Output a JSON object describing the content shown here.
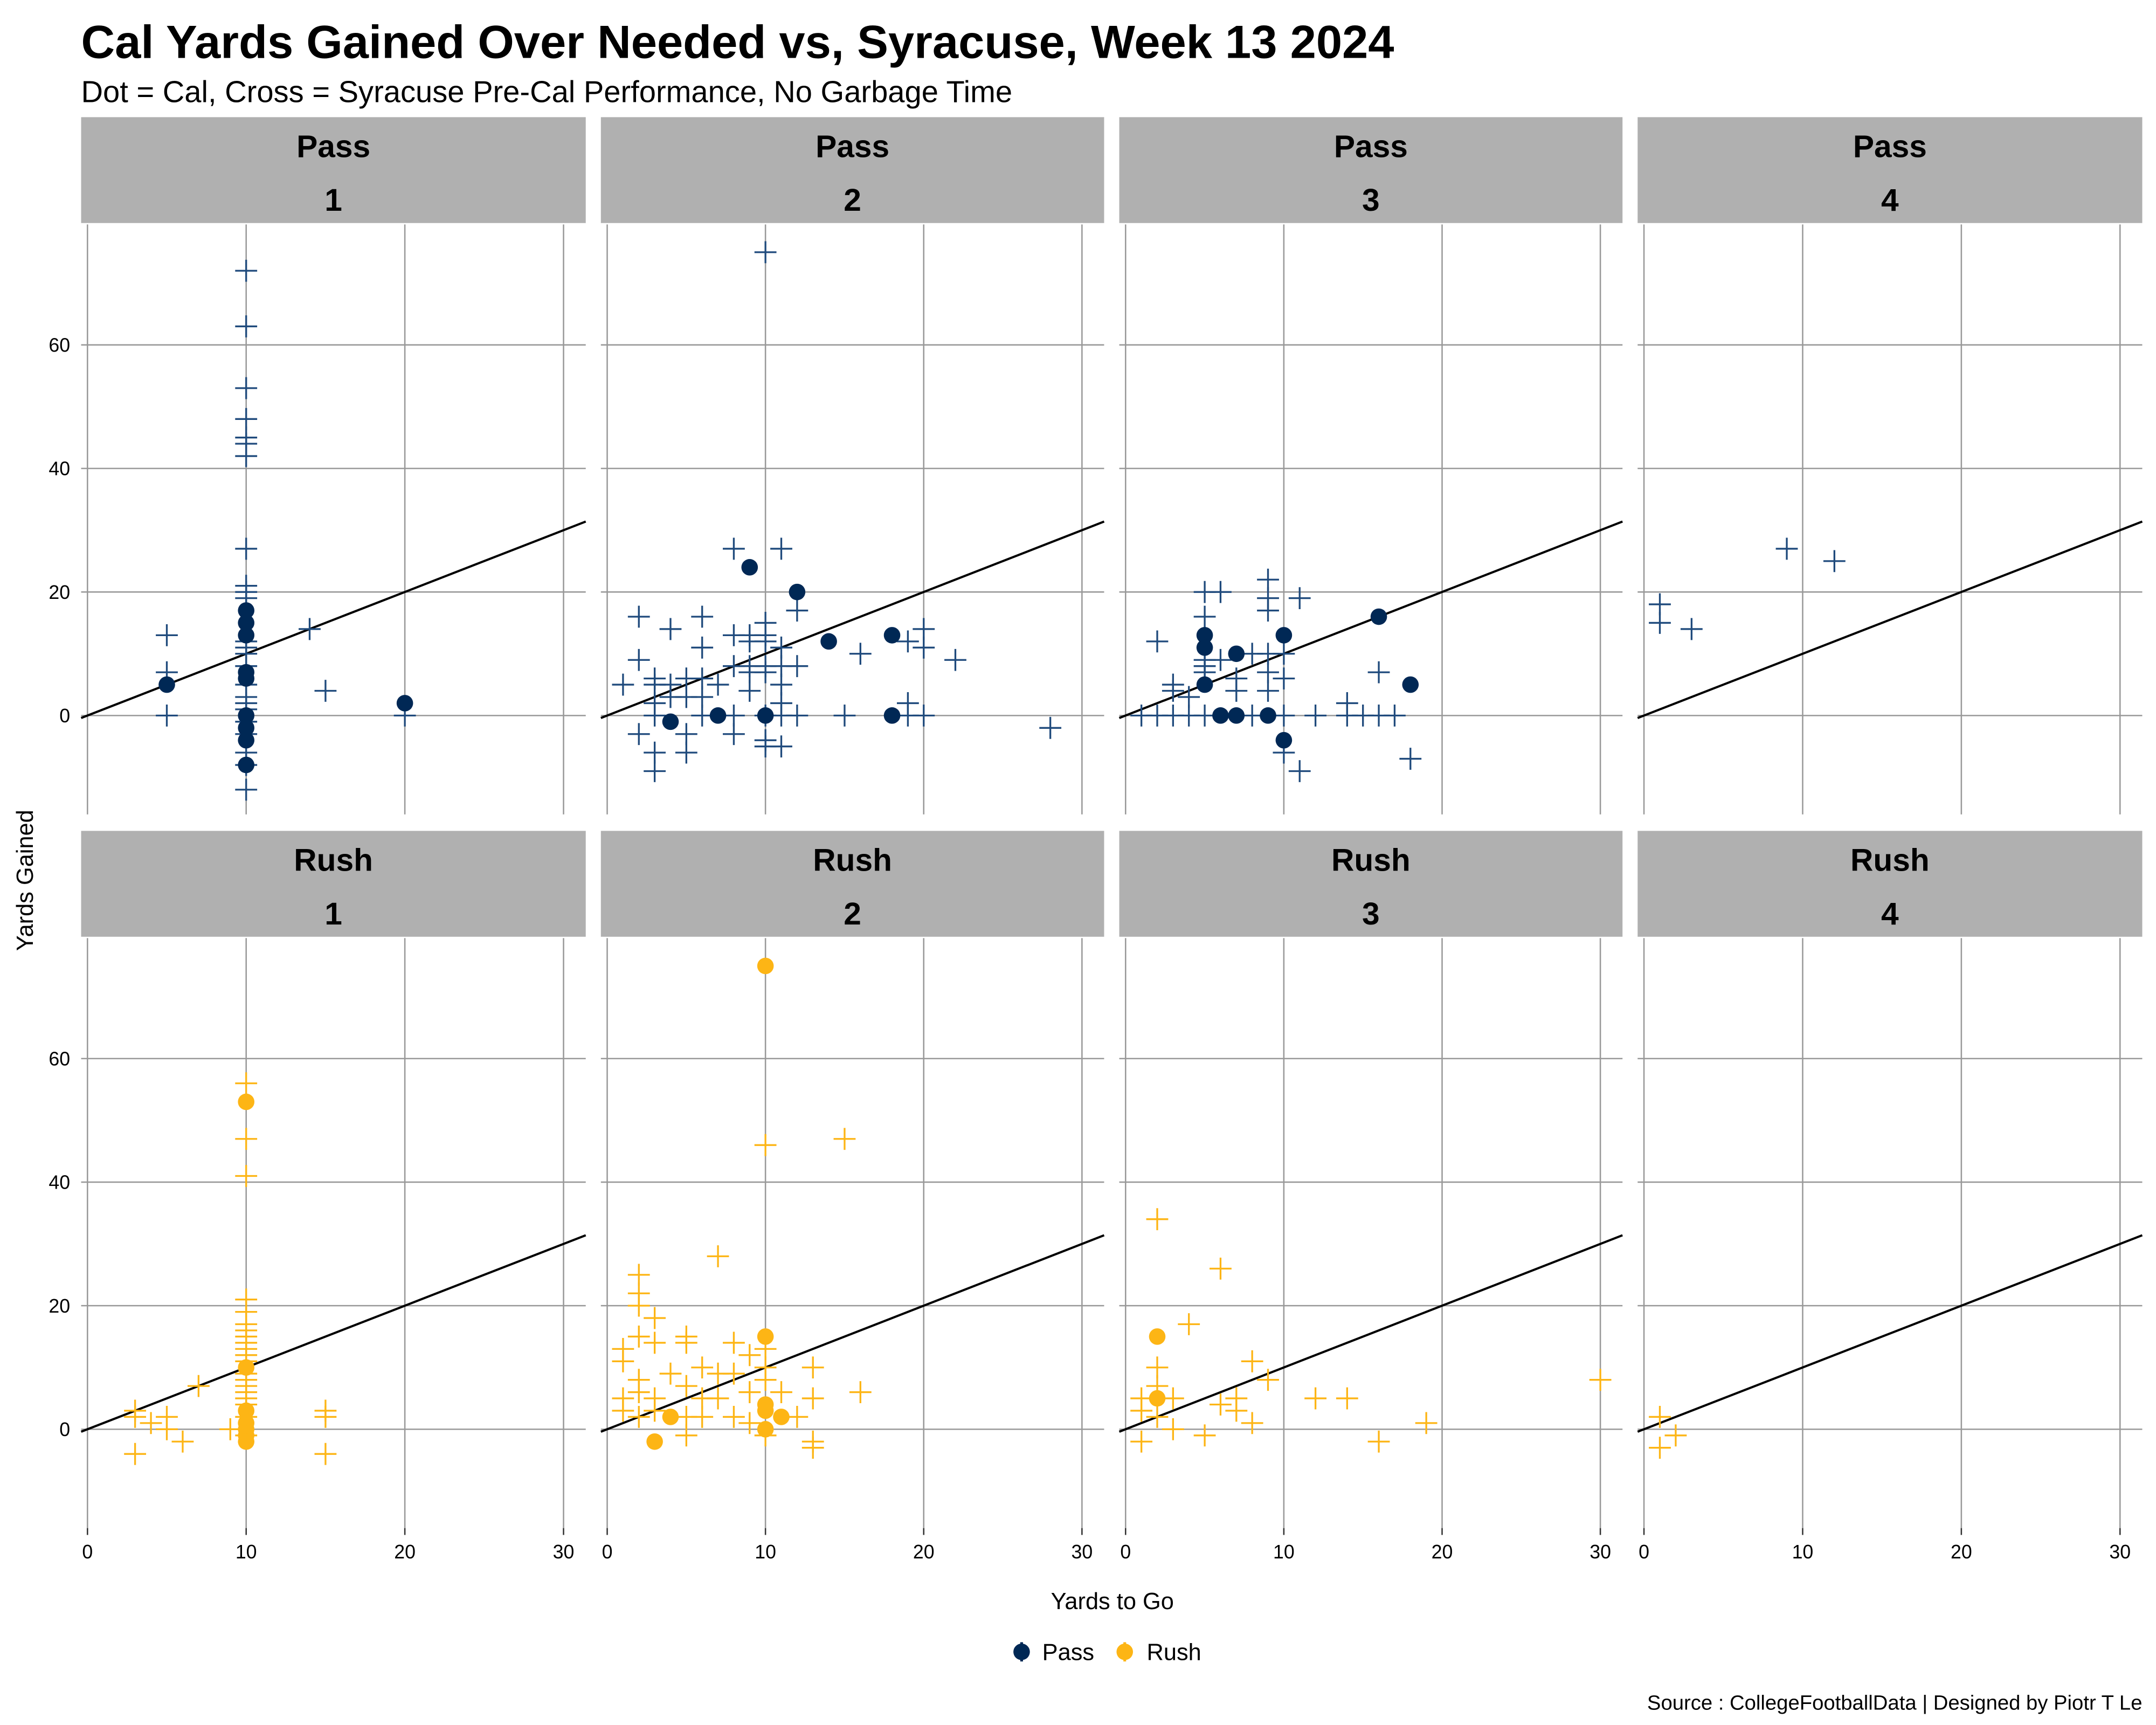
{
  "colors": {
    "pass": "#002855",
    "pass_cross": "#1f4a7c",
    "rush": "#FDB515",
    "strip": "#b0b0b0",
    "grid": "#999999",
    "line": "#000000"
  },
  "chart_data": {
    "type": "scatter",
    "title": "Cal Yards Gained Over Needed vs, Syracuse, Week 13 2024",
    "subtitle": "Dot = Cal, Cross = Syracuse Pre-Cal Performance, No Garbage Time",
    "xlabel": "Yards to Go",
    "ylabel": "Yards Gained",
    "caption": "Source : CollegeFootballData | Designed by Piotr T Le",
    "xlim": [
      -0.4,
      31.4
    ],
    "ylim": [
      -16,
      79.5
    ],
    "xticks": [
      0,
      10,
      20,
      30
    ],
    "yticks": [
      0,
      20,
      40,
      60
    ],
    "reference_line": "y = x",
    "grid": true,
    "legend": {
      "position": "bottom",
      "entries": [
        {
          "label": "Pass",
          "key": "pass"
        },
        {
          "label": "Rush",
          "key": "rush"
        }
      ]
    },
    "panels": [
      {
        "play_type": "Pass",
        "down": "1",
        "key": "pass",
        "cal": [
          [
            5,
            5
          ],
          [
            10,
            17
          ],
          [
            10,
            15
          ],
          [
            10,
            13
          ],
          [
            10,
            7
          ],
          [
            10,
            6
          ],
          [
            10,
            0
          ],
          [
            10,
            -2
          ],
          [
            10,
            -4
          ],
          [
            10,
            -8
          ],
          [
            20,
            2
          ]
        ],
        "syracuse": [
          [
            5,
            13
          ],
          [
            5,
            7
          ],
          [
            5,
            0
          ],
          [
            10,
            72
          ],
          [
            10,
            63
          ],
          [
            10,
            53
          ],
          [
            10,
            48
          ],
          [
            10,
            45
          ],
          [
            10,
            44
          ],
          [
            10,
            42
          ],
          [
            10,
            27
          ],
          [
            10,
            21
          ],
          [
            10,
            20
          ],
          [
            10,
            19
          ],
          [
            10,
            12
          ],
          [
            10,
            11
          ],
          [
            10,
            10
          ],
          [
            10,
            8
          ],
          [
            10,
            5
          ],
          [
            10,
            3
          ],
          [
            10,
            2
          ],
          [
            10,
            1
          ],
          [
            10,
            -1
          ],
          [
            10,
            -3
          ],
          [
            10,
            -6
          ],
          [
            10,
            -8
          ],
          [
            10,
            -12
          ],
          [
            14,
            14
          ],
          [
            15,
            4
          ],
          [
            20,
            0
          ]
        ]
      },
      {
        "play_type": "Pass",
        "down": "2",
        "key": "pass",
        "cal": [
          [
            4,
            -1
          ],
          [
            7,
            0
          ],
          [
            9,
            24
          ],
          [
            10,
            0
          ],
          [
            12,
            20
          ],
          [
            14,
            12
          ],
          [
            18,
            13
          ],
          [
            18,
            0
          ]
        ],
        "syracuse": [
          [
            10,
            75
          ],
          [
            8,
            27
          ],
          [
            11,
            27
          ],
          [
            2,
            16
          ],
          [
            4,
            14
          ],
          [
            6,
            16
          ],
          [
            2,
            9
          ],
          [
            6,
            11
          ],
          [
            8,
            13
          ],
          [
            9,
            13
          ],
          [
            10,
            13
          ],
          [
            10,
            15
          ],
          [
            12,
            17
          ],
          [
            9,
            12
          ],
          [
            10,
            12
          ],
          [
            11,
            11
          ],
          [
            12,
            8
          ],
          [
            8,
            8
          ],
          [
            9,
            8
          ],
          [
            10,
            8
          ],
          [
            11,
            8
          ],
          [
            16,
            10
          ],
          [
            19,
            12
          ],
          [
            20,
            14
          ],
          [
            20,
            11
          ],
          [
            22,
            9
          ],
          [
            1,
            5
          ],
          [
            3,
            5
          ],
          [
            3,
            6
          ],
          [
            4,
            5
          ],
          [
            5,
            6
          ],
          [
            5,
            3
          ],
          [
            6,
            6
          ],
          [
            7,
            5
          ],
          [
            9,
            4
          ],
          [
            11,
            5
          ],
          [
            3,
            2
          ],
          [
            4,
            3
          ],
          [
            6,
            3
          ],
          [
            9,
            7
          ],
          [
            10,
            7
          ],
          [
            11,
            2
          ],
          [
            3,
            0
          ],
          [
            6,
            0
          ],
          [
            8,
            0
          ],
          [
            10,
            0
          ],
          [
            11,
            0
          ],
          [
            12,
            0
          ],
          [
            15,
            0
          ],
          [
            19,
            0
          ],
          [
            20,
            0
          ],
          [
            19,
            2
          ],
          [
            2,
            -3
          ],
          [
            5,
            -3
          ],
          [
            8,
            -3
          ],
          [
            10,
            -4
          ],
          [
            10,
            -5
          ],
          [
            11,
            -5
          ],
          [
            3,
            -6
          ],
          [
            5,
            -6
          ],
          [
            3,
            -9
          ],
          [
            28,
            -2
          ]
        ]
      },
      {
        "play_type": "Pass",
        "down": "3",
        "key": "pass",
        "cal": [
          [
            5,
            13
          ],
          [
            5,
            11
          ],
          [
            5,
            5
          ],
          [
            6,
            0
          ],
          [
            7,
            10
          ],
          [
            7,
            0
          ],
          [
            9,
            0
          ],
          [
            10,
            13
          ],
          [
            10,
            -4
          ],
          [
            16,
            16
          ],
          [
            18,
            5
          ]
        ],
        "syracuse": [
          [
            2,
            12
          ],
          [
            3,
            5
          ],
          [
            3,
            4
          ],
          [
            4,
            3
          ],
          [
            5,
            20
          ],
          [
            5,
            16
          ],
          [
            5,
            9
          ],
          [
            5,
            8
          ],
          [
            5,
            7
          ],
          [
            6,
            20
          ],
          [
            6,
            9
          ],
          [
            7,
            6
          ],
          [
            7,
            4
          ],
          [
            8,
            10
          ],
          [
            9,
            22
          ],
          [
            9,
            19
          ],
          [
            9,
            17
          ],
          [
            9,
            10
          ],
          [
            9,
            7
          ],
          [
            9,
            4
          ],
          [
            10,
            10
          ],
          [
            10,
            6
          ],
          [
            11,
            19
          ],
          [
            1,
            0
          ],
          [
            2,
            0
          ],
          [
            3,
            0
          ],
          [
            4,
            0
          ],
          [
            5,
            0
          ],
          [
            8,
            0
          ],
          [
            10,
            0
          ],
          [
            12,
            0
          ],
          [
            14,
            2
          ],
          [
            14,
            0
          ],
          [
            15,
            0
          ],
          [
            16,
            0
          ],
          [
            16,
            7
          ],
          [
            17,
            0
          ],
          [
            10,
            -6
          ],
          [
            11,
            -9
          ],
          [
            18,
            -7
          ]
        ]
      },
      {
        "play_type": "Pass",
        "down": "4",
        "key": "pass",
        "cal": [],
        "syracuse": [
          [
            1,
            18
          ],
          [
            1,
            15
          ],
          [
            3,
            14
          ],
          [
            9,
            27
          ],
          [
            12,
            25
          ]
        ]
      },
      {
        "play_type": "Rush",
        "down": "1",
        "key": "rush",
        "cal": [
          [
            10,
            53
          ],
          [
            10,
            10
          ],
          [
            10,
            3
          ],
          [
            10,
            1
          ],
          [
            10,
            0
          ],
          [
            10,
            -1
          ],
          [
            10,
            -2
          ]
        ],
        "syracuse": [
          [
            3,
            3
          ],
          [
            3,
            2
          ],
          [
            3,
            -4
          ],
          [
            4,
            1
          ],
          [
            5,
            2
          ],
          [
            5,
            0
          ],
          [
            6,
            -2
          ],
          [
            7,
            7
          ],
          [
            9,
            0
          ],
          [
            10,
            56
          ],
          [
            10,
            47
          ],
          [
            10,
            41
          ],
          [
            10,
            21
          ],
          [
            10,
            19
          ],
          [
            10,
            17
          ],
          [
            10,
            16
          ],
          [
            10,
            15
          ],
          [
            10,
            14
          ],
          [
            10,
            13
          ],
          [
            10,
            12
          ],
          [
            10,
            11
          ],
          [
            10,
            9
          ],
          [
            10,
            8
          ],
          [
            10,
            7
          ],
          [
            10,
            6
          ],
          [
            10,
            5
          ],
          [
            10,
            4
          ],
          [
            10,
            2
          ],
          [
            10,
            -1
          ],
          [
            15,
            3
          ],
          [
            15,
            2
          ],
          [
            15,
            -4
          ]
        ]
      },
      {
        "play_type": "Rush",
        "down": "2",
        "key": "rush",
        "cal": [
          [
            10,
            75
          ],
          [
            10,
            15
          ],
          [
            10,
            4
          ],
          [
            10,
            3
          ],
          [
            10,
            0
          ],
          [
            11,
            2
          ],
          [
            4,
            2
          ],
          [
            3,
            -2
          ]
        ],
        "syracuse": [
          [
            10,
            46
          ],
          [
            15,
            47
          ],
          [
            7,
            28
          ],
          [
            2,
            25
          ],
          [
            2,
            22
          ],
          [
            2,
            20
          ],
          [
            3,
            18
          ],
          [
            2,
            15
          ],
          [
            1,
            13
          ],
          [
            1,
            11
          ],
          [
            3,
            14
          ],
          [
            5,
            15
          ],
          [
            5,
            14
          ],
          [
            8,
            14
          ],
          [
            9,
            12
          ],
          [
            10,
            13
          ],
          [
            10,
            10
          ],
          [
            10,
            8
          ],
          [
            13,
            10
          ],
          [
            4,
            9
          ],
          [
            6,
            10
          ],
          [
            7,
            9
          ],
          [
            8,
            9
          ],
          [
            2,
            8
          ],
          [
            2,
            6
          ],
          [
            1,
            5
          ],
          [
            3,
            5
          ],
          [
            5,
            7
          ],
          [
            6,
            5
          ],
          [
            7,
            5
          ],
          [
            9,
            6
          ],
          [
            11,
            6
          ],
          [
            13,
            5
          ],
          [
            16,
            6
          ],
          [
            1,
            3
          ],
          [
            2,
            2
          ],
          [
            3,
            3
          ],
          [
            5,
            2
          ],
          [
            6,
            2
          ],
          [
            8,
            2
          ],
          [
            9,
            1
          ],
          [
            12,
            2
          ],
          [
            5,
            -1
          ],
          [
            10,
            -1
          ],
          [
            13,
            -2
          ],
          [
            13,
            -3
          ]
        ]
      },
      {
        "play_type": "Rush",
        "down": "3",
        "key": "rush",
        "cal": [
          [
            2,
            15
          ],
          [
            2,
            5
          ]
        ],
        "syracuse": [
          [
            2,
            34
          ],
          [
            6,
            26
          ],
          [
            4,
            17
          ],
          [
            2,
            10
          ],
          [
            2,
            7
          ],
          [
            1,
            5
          ],
          [
            1,
            3
          ],
          [
            1,
            -2
          ],
          [
            2,
            2
          ],
          [
            3,
            5
          ],
          [
            3,
            0
          ],
          [
            6,
            4
          ],
          [
            7,
            5
          ],
          [
            7,
            3
          ],
          [
            8,
            11
          ],
          [
            8,
            1
          ],
          [
            9,
            8
          ],
          [
            12,
            5
          ],
          [
            14,
            5
          ],
          [
            5,
            -1
          ],
          [
            16,
            -2
          ],
          [
            19,
            1
          ],
          [
            30,
            8
          ]
        ]
      },
      {
        "play_type": "Rush",
        "down": "4",
        "key": "rush",
        "cal": [],
        "syracuse": [
          [
            1,
            2
          ],
          [
            1,
            -3
          ],
          [
            2,
            -1
          ]
        ]
      }
    ]
  }
}
